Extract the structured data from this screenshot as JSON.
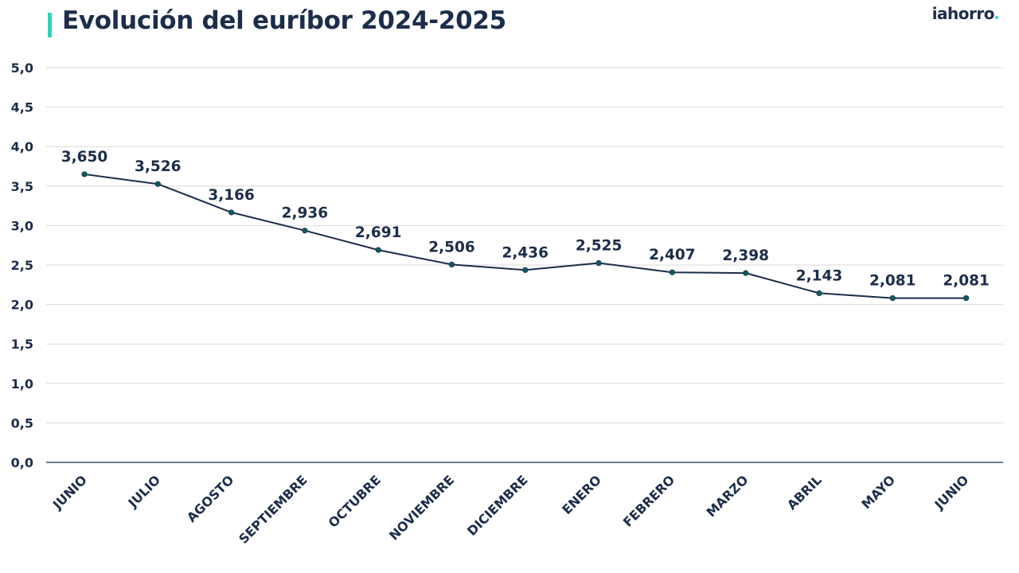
{
  "header": {
    "title": "Evolución del euríbor 2024-2025",
    "logo_text": "iahorro",
    "accent_color": "#2ed5b8"
  },
  "colors": {
    "text": "#1c2d4a",
    "line": "#1c2d4a",
    "marker": "#0f5c60",
    "grid": "#d9d9d9",
    "axis": "#1c2d4a"
  },
  "chart_data": {
    "type": "line",
    "title": "Evolución del euríbor 2024-2025",
    "xlabel": "",
    "ylabel": "",
    "categories": [
      "JUNIO",
      "JULIO",
      "AGOSTO",
      "SEPTIEMBRE",
      "OCTUBRE",
      "NOVIEMBRE",
      "DICIEMBRE",
      "ENERO",
      "FEBRERO",
      "MARZO",
      "ABRIL",
      "MAYO",
      "JUNIO"
    ],
    "values": [
      3.65,
      3.526,
      3.166,
      2.936,
      2.691,
      2.506,
      2.436,
      2.525,
      2.407,
      2.398,
      2.143,
      2.081,
      2.081
    ],
    "data_labels": [
      "3,650",
      "3,526",
      "3,166",
      "2,936",
      "2,691",
      "2,506",
      "2,436",
      "2,525",
      "2,407",
      "2,398",
      "2,143",
      "2,081",
      "2,081"
    ],
    "ylim": [
      0,
      5
    ],
    "yticks": [
      0,
      0.5,
      1,
      1.5,
      2,
      2.5,
      3,
      3.5,
      4,
      4.5,
      5
    ],
    "ytick_labels": [
      "0,0",
      "0,5",
      "1,0",
      "1,5",
      "2,0",
      "2,5",
      "3,0",
      "3,5",
      "4,0",
      "4,5",
      "5,0"
    ],
    "grid": true,
    "legend": "none"
  }
}
